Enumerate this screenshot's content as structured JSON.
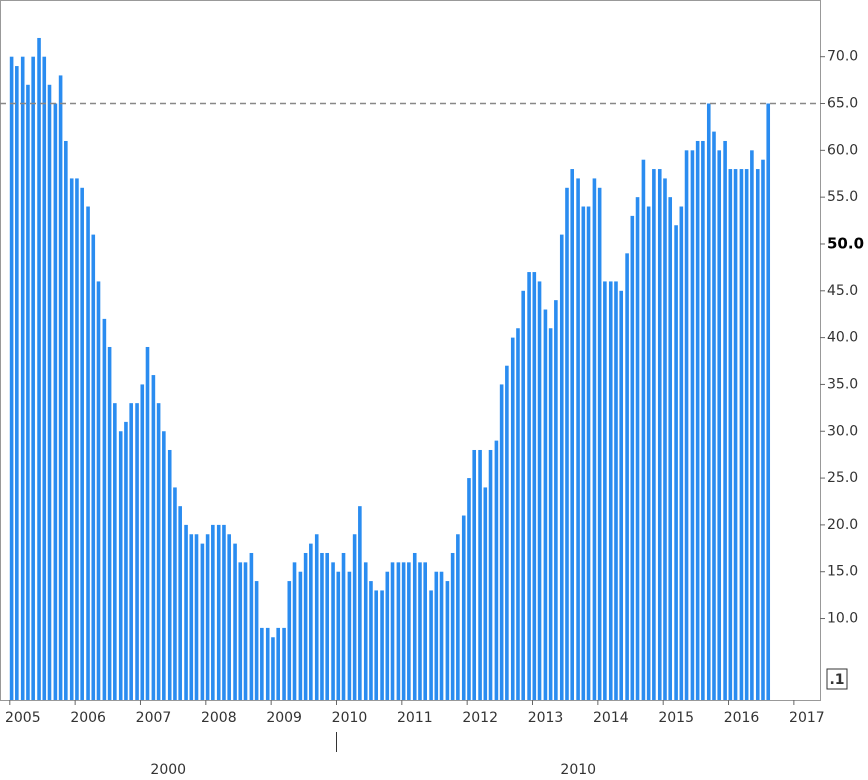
{
  "chart_data": {
    "type": "bar",
    "color": "#2a8cf0",
    "x": [
      2005,
      2005.08,
      2005.17,
      2005.25,
      2005.33,
      2005.42,
      2005.5,
      2005.58,
      2005.67,
      2005.75,
      2005.83,
      2005.92,
      2006,
      2006.08,
      2006.17,
      2006.25,
      2006.33,
      2006.42,
      2006.5,
      2006.58,
      2006.67,
      2006.75,
      2006.83,
      2006.92,
      2007,
      2007.08,
      2007.17,
      2007.25,
      2007.33,
      2007.42,
      2007.5,
      2007.58,
      2007.67,
      2007.75,
      2007.83,
      2007.92,
      2008,
      2008.08,
      2008.17,
      2008.25,
      2008.33,
      2008.42,
      2008.5,
      2008.58,
      2008.67,
      2008.75,
      2008.83,
      2008.92,
      2009,
      2009.08,
      2009.17,
      2009.25,
      2009.33,
      2009.42,
      2009.5,
      2009.58,
      2009.67,
      2009.75,
      2009.83,
      2009.92,
      2010,
      2010.08,
      2010.17,
      2010.25,
      2010.33,
      2010.42,
      2010.5,
      2010.58,
      2010.67,
      2010.75,
      2010.83,
      2010.92,
      2011,
      2011.08,
      2011.17,
      2011.25,
      2011.33,
      2011.42,
      2011.5,
      2011.58,
      2011.67,
      2011.75,
      2011.83,
      2011.92,
      2012,
      2012.08,
      2012.17,
      2012.25,
      2012.33,
      2012.42,
      2012.5,
      2012.58,
      2012.67,
      2012.75,
      2012.83,
      2012.92,
      2013,
      2013.08,
      2013.17,
      2013.25,
      2013.33,
      2013.42,
      2013.5,
      2013.58,
      2013.67,
      2013.75,
      2013.83,
      2013.92,
      2014,
      2014.08,
      2014.17,
      2014.25,
      2014.33,
      2014.42,
      2014.5,
      2014.58,
      2014.67,
      2014.75,
      2014.83,
      2014.92,
      2015,
      2015.08,
      2015.17,
      2015.25,
      2015.33,
      2015.42,
      2015.5,
      2015.58,
      2015.67,
      2015.75,
      2015.83,
      2015.92,
      2016,
      2016.08,
      2016.17,
      2016.25,
      2016.33,
      2016.42,
      2016.5,
      2016.58
    ],
    "values": [
      70,
      69,
      70,
      67,
      70,
      72,
      70,
      67,
      65,
      68,
      61,
      57,
      57,
      56,
      54,
      51,
      46,
      42,
      39,
      33,
      30,
      31,
      33,
      33,
      35,
      39,
      36,
      33,
      30,
      28,
      24,
      22,
      20,
      19,
      19,
      18,
      19,
      20,
      20,
      20,
      19,
      18,
      16,
      16,
      17,
      14,
      9,
      9,
      8,
      9,
      9,
      14,
      16,
      15,
      17,
      18,
      19,
      17,
      17,
      16,
      15,
      17,
      15,
      19,
      22,
      16,
      14,
      13,
      13,
      15,
      16,
      16,
      16,
      16,
      17,
      16,
      16,
      13,
      15,
      15,
      14,
      17,
      19,
      21,
      25,
      28,
      28,
      24,
      28,
      29,
      35,
      37,
      40,
      41,
      45,
      47,
      47,
      46,
      43,
      41,
      44,
      51,
      56,
      58,
      57,
      54,
      54,
      57,
      56,
      46,
      46,
      46,
      45,
      49,
      53,
      55,
      59,
      54,
      58,
      58,
      57,
      55,
      52,
      54,
      60,
      60,
      61,
      61,
      65,
      62,
      60,
      61,
      58,
      58,
      58,
      58,
      60,
      58,
      59,
      65
    ],
    "xlim": [
      2004.85,
      2017.4
    ],
    "xticks": [
      2005,
      2006,
      2007,
      2008,
      2009,
      2010,
      2011,
      2012,
      2013,
      2014,
      2015,
      2016,
      2017
    ],
    "decade_ticks": [
      2000,
      2010
    ],
    "ylim": [
      1.3,
      75.2
    ],
    "yticks": [
      {
        "value": 10,
        "label": "10.0"
      },
      {
        "value": 15,
        "label": "15.0"
      },
      {
        "value": 20,
        "label": "20.0"
      },
      {
        "value": 25,
        "label": "25.0"
      },
      {
        "value": 30,
        "label": "30.0"
      },
      {
        "value": 35,
        "label": "35.0"
      },
      {
        "value": 40,
        "label": "40.0"
      },
      {
        "value": 45,
        "label": "45.0"
      },
      {
        "value": 50,
        "label": "50.0"
      },
      {
        "value": 55,
        "label": "55.0"
      },
      {
        "value": 60,
        "label": "60.0"
      },
      {
        "value": 65,
        "label": "65.0"
      },
      {
        "value": 70,
        "label": "70.0"
      }
    ],
    "bold_ytick": 50,
    "reference_line": 65,
    "corner_label": ".1"
  }
}
